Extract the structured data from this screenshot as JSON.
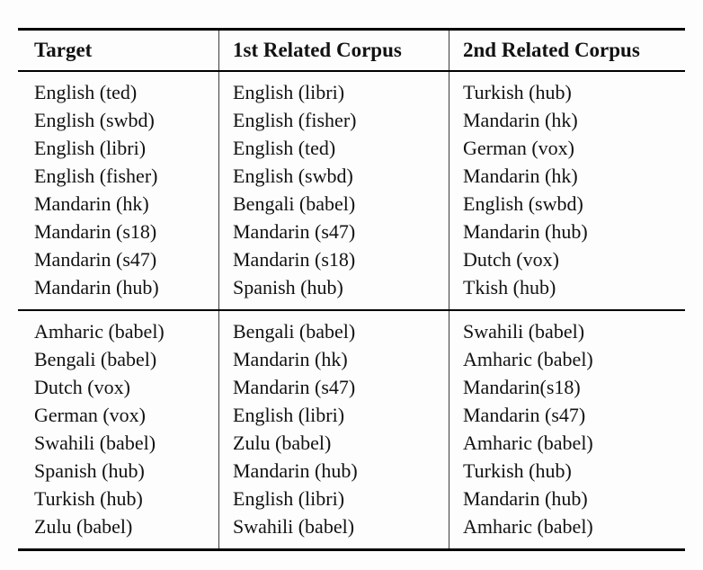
{
  "page": {
    "background_color": "#fdfdfd",
    "rule_color": "#000000",
    "divider_color": "#3c3c3c",
    "text_color": "#121212"
  },
  "table": {
    "headers": [
      "Target",
      "1st Related Corpus",
      "2nd Related Corpus"
    ],
    "groups": [
      {
        "rows": [
          [
            "English (ted)",
            "English (libri)",
            "Turkish (hub)"
          ],
          [
            "English (swbd)",
            "English (fisher)",
            "Mandarin (hk)"
          ],
          [
            "English (libri)",
            "English (ted)",
            "German (vox)"
          ],
          [
            "English (fisher)",
            "English (swbd)",
            "Mandarin (hk)"
          ],
          [
            "Mandarin (hk)",
            "Bengali (babel)",
            "English (swbd)"
          ],
          [
            "Mandarin (s18)",
            "Mandarin (s47)",
            "Mandarin (hub)"
          ],
          [
            "Mandarin (s47)",
            "Mandarin (s18)",
            "Dutch (vox)"
          ],
          [
            "Mandarin (hub)",
            "Spanish (hub)",
            "Tkish (hub)"
          ]
        ]
      },
      {
        "rows": [
          [
            "Amharic (babel)",
            "Bengali (babel)",
            "Swahili (babel)"
          ],
          [
            "Bengali (babel)",
            "Mandarin (hk)",
            "Amharic (babel)"
          ],
          [
            "Dutch (vox)",
            "Mandarin (s47)",
            "Mandarin(s18)"
          ],
          [
            "German (vox)",
            "English (libri)",
            "Mandarin (s47)"
          ],
          [
            "Swahili (babel)",
            "Zulu (babel)",
            "Amharic (babel)"
          ],
          [
            "Spanish (hub)",
            "Mandarin (hub)",
            "Turkish (hub)"
          ],
          [
            "Turkish (hub)",
            "English (libri)",
            "Mandarin (hub)"
          ],
          [
            "Zulu (babel)",
            "Swahili (babel)",
            "Amharic (babel)"
          ]
        ]
      }
    ]
  }
}
